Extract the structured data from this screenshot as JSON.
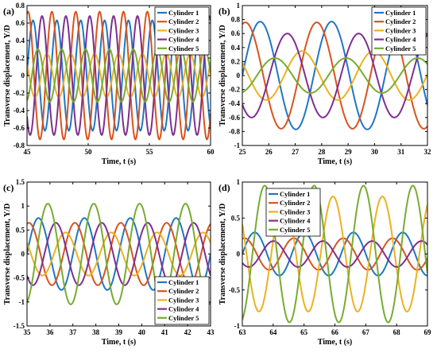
{
  "colors": [
    "#1f77c4",
    "#d9531e",
    "#edb120",
    "#7e2f8e",
    "#77ac30"
  ],
  "chart_data": [
    {
      "type": "line",
      "panel_label": "(a)",
      "xlabel": "Time, t (s)",
      "ylabel": "Transverse displacement, Y/D",
      "xlim": [
        45,
        60
      ],
      "ylim": [
        -0.8,
        0.8
      ],
      "xticks": [
        45,
        50,
        55,
        60
      ],
      "yticks": [
        -0.8,
        -0.6,
        -0.4,
        -0.2,
        0,
        0.2,
        0.4,
        0.6,
        0.8
      ],
      "legend_position": "top-right",
      "series": [
        {
          "name": "Cylinder 1",
          "amplitude": 0.63,
          "period": 1.95,
          "phase": 0.0
        },
        {
          "name": "Cylinder 2",
          "amplitude": 0.73,
          "period": 1.95,
          "phase": 1.3
        },
        {
          "name": "Cylinder 3",
          "amplitude": 0.25,
          "period": 1.95,
          "phase": 2.6
        },
        {
          "name": "Cylinder 4",
          "amplitude": 0.68,
          "period": 1.95,
          "phase": 3.9
        },
        {
          "name": "Cylinder 5",
          "amplitude": 0.3,
          "period": 1.95,
          "phase": 5.0
        }
      ]
    },
    {
      "type": "line",
      "panel_label": "(b)",
      "xlabel": "Time, t (s)",
      "ylabel": "Transverse displacement, Y/D",
      "xlim": [
        25,
        32
      ],
      "ylim": [
        -1,
        1
      ],
      "xticks": [
        25,
        26,
        27,
        28,
        29,
        30,
        31,
        32
      ],
      "yticks": [
        -1,
        -0.8,
        -0.6,
        -0.4,
        -0.2,
        0,
        0.2,
        0.4,
        0.6,
        0.8,
        1
      ],
      "legend_position": "top-right",
      "series": [
        {
          "name": "Cylinder 1",
          "amplitude": 0.77,
          "period": 2.7,
          "phase": 0.0
        },
        {
          "name": "Cylinder 2",
          "amplitude": 0.76,
          "period": 2.7,
          "phase": 1.3
        },
        {
          "name": "Cylinder 3",
          "amplitude": 0.35,
          "period": 2.7,
          "phase": 2.6
        },
        {
          "name": "Cylinder 4",
          "amplitude": 0.6,
          "period": 2.7,
          "phase": 3.9
        },
        {
          "name": "Cylinder 5",
          "amplitude": 0.25,
          "period": 2.7,
          "phase": 5.0
        }
      ]
    },
    {
      "type": "line",
      "panel_label": "(c)",
      "xlabel": "Time, t (s)",
      "ylabel": "Transverse displacement, Y/D",
      "xlim": [
        35,
        43
      ],
      "ylim": [
        -1.5,
        1.5
      ],
      "xticks": [
        35,
        36,
        37,
        38,
        39,
        40,
        41,
        42,
        43
      ],
      "yticks": [
        -1.5,
        -1,
        -0.5,
        0,
        0.5,
        1,
        1.5
      ],
      "legend_position": "bottom-right",
      "series": [
        {
          "name": "Cylinder 1",
          "amplitude": 0.75,
          "period": 2.0,
          "phase": 0.0
        },
        {
          "name": "Cylinder 2",
          "amplitude": 0.65,
          "period": 2.0,
          "phase": 1.3
        },
        {
          "name": "Cylinder 3",
          "amplitude": 0.45,
          "period": 2.0,
          "phase": 2.6
        },
        {
          "name": "Cylinder 4",
          "amplitude": 0.65,
          "period": 2.0,
          "phase": 3.9
        },
        {
          "name": "Cylinder 5",
          "amplitude": 1.05,
          "period": 2.0,
          "phase": 5.0
        }
      ]
    },
    {
      "type": "line",
      "panel_label": "(d)",
      "xlabel": "Time, t (s)",
      "ylabel": "Transverse displacement, Y/D",
      "xlim": [
        63,
        69
      ],
      "ylim": [
        -1,
        1
      ],
      "xticks": [
        63,
        64,
        65,
        66,
        67,
        68,
        69
      ],
      "yticks": [
        -1,
        -0.5,
        0,
        0.5,
        1
      ],
      "legend_position": "top-left",
      "series": [
        {
          "name": "Cylinder 1",
          "amplitude": 0.3,
          "period": 1.6,
          "phase": 0.0
        },
        {
          "name": "Cylinder 2",
          "amplitude": 0.22,
          "period": 1.6,
          "phase": 1.3
        },
        {
          "name": "Cylinder 3",
          "amplitude": 0.8,
          "period": 1.6,
          "phase": 2.6
        },
        {
          "name": "Cylinder 4",
          "amplitude": 0.18,
          "period": 1.6,
          "phase": 3.9
        },
        {
          "name": "Cylinder 5",
          "amplitude": 0.95,
          "period": 1.6,
          "phase": 5.0
        }
      ]
    }
  ]
}
